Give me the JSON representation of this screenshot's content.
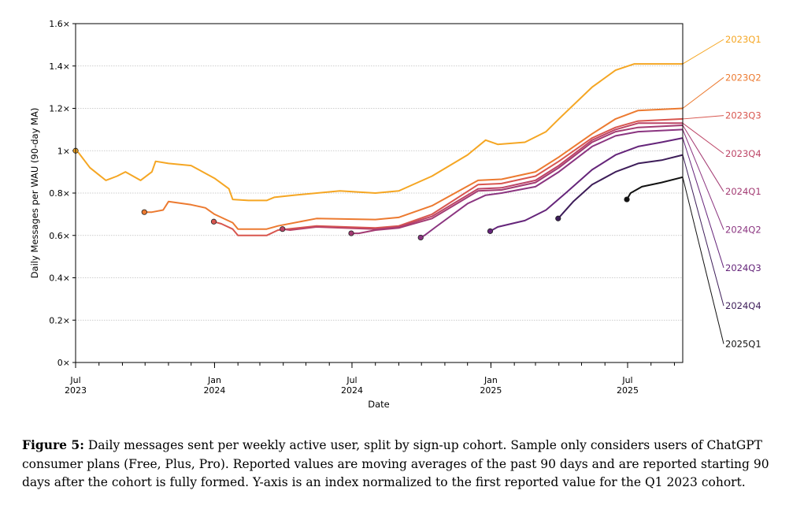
{
  "caption": {
    "label": "Figure 5:",
    "text": "Daily messages sent per weekly active user, split by sign-up cohort. Sample only considers users of ChatGPT consumer plans (Free, Plus, Pro). Reported values are moving averages of the past 90 days and are reported starting 90 days after the cohort is fully formed. Y-axis is an index normalized to the first reported value for the Q1 2023 cohort."
  },
  "chart_data": {
    "type": "line",
    "xlabel": "Date",
    "ylabel": "Daily Messages per WAU (90-day MA)",
    "ylim": [
      0,
      1.6
    ],
    "xlim": [
      "2023-07-01",
      "2025-09-12"
    ],
    "yticks": [
      {
        "value": 0,
        "label": "0×"
      },
      {
        "value": 0.2,
        "label": "0.2×"
      },
      {
        "value": 0.4,
        "label": "0.4×"
      },
      {
        "value": 0.6,
        "label": "0.6×"
      },
      {
        "value": 0.8,
        "label": "0.8×"
      },
      {
        "value": 1.0,
        "label": "1×"
      },
      {
        "value": 1.2,
        "label": "1.2×"
      },
      {
        "value": 1.4,
        "label": "1.4×"
      },
      {
        "value": 1.6,
        "label": "1.6×"
      }
    ],
    "xticks": [
      {
        "date": "2023-07-01",
        "label": [
          "Jul",
          "2023"
        ]
      },
      {
        "date": "2024-01-01",
        "label": [
          "Jan",
          "2024"
        ]
      },
      {
        "date": "2024-07-01",
        "label": [
          "Jul",
          "2024"
        ]
      },
      {
        "date": "2025-01-01",
        "label": [
          "Jan",
          "2025"
        ]
      },
      {
        "date": "2025-07-01",
        "label": [
          "Jul",
          "2025"
        ]
      }
    ],
    "grid": "horizontal dotted",
    "legend": "direct labels right of plot",
    "series": [
      {
        "name": "2023Q1",
        "color": "#f5a623",
        "points": [
          [
            "2023-07-01",
            1.0
          ],
          [
            "2023-07-05",
            0.99
          ],
          [
            "2023-07-20",
            0.92
          ],
          [
            "2023-08-10",
            0.86
          ],
          [
            "2023-08-25",
            0.88
          ],
          [
            "2023-09-05",
            0.9
          ],
          [
            "2023-09-25",
            0.86
          ],
          [
            "2023-10-10",
            0.9
          ],
          [
            "2023-10-15",
            0.95
          ],
          [
            "2023-11-01",
            0.94
          ],
          [
            "2023-12-01",
            0.93
          ],
          [
            "2024-01-01",
            0.87
          ],
          [
            "2024-01-20",
            0.82
          ],
          [
            "2024-01-25",
            0.77
          ],
          [
            "2024-02-15",
            0.765
          ],
          [
            "2024-03-10",
            0.765
          ],
          [
            "2024-03-20",
            0.78
          ],
          [
            "2024-04-15",
            0.79
          ],
          [
            "2024-06-15",
            0.81
          ],
          [
            "2024-08-01",
            0.8
          ],
          [
            "2024-09-01",
            0.81
          ],
          [
            "2024-10-15",
            0.88
          ],
          [
            "2024-12-01",
            0.98
          ],
          [
            "2024-12-25",
            1.05
          ],
          [
            "2025-01-10",
            1.03
          ],
          [
            "2025-02-15",
            1.04
          ],
          [
            "2025-03-15",
            1.09
          ],
          [
            "2025-04-01",
            1.15
          ],
          [
            "2025-05-15",
            1.3
          ],
          [
            "2025-06-15",
            1.38
          ],
          [
            "2025-07-10",
            1.41
          ],
          [
            "2025-09-12",
            1.41
          ]
        ]
      },
      {
        "name": "2023Q2",
        "color": "#ec7a30",
        "points": [
          [
            "2023-09-30",
            0.71
          ],
          [
            "2023-10-10",
            0.71
          ],
          [
            "2023-10-25",
            0.72
          ],
          [
            "2023-11-01",
            0.76
          ],
          [
            "2023-12-01",
            0.745
          ],
          [
            "2023-12-20",
            0.73
          ],
          [
            "2024-01-01",
            0.7
          ],
          [
            "2024-01-25",
            0.66
          ],
          [
            "2024-02-01",
            0.63
          ],
          [
            "2024-03-10",
            0.63
          ],
          [
            "2024-03-25",
            0.645
          ],
          [
            "2024-05-15",
            0.68
          ],
          [
            "2024-08-01",
            0.675
          ],
          [
            "2024-09-01",
            0.685
          ],
          [
            "2024-10-15",
            0.74
          ],
          [
            "2024-12-15",
            0.86
          ],
          [
            "2025-01-15",
            0.865
          ],
          [
            "2025-03-01",
            0.9
          ],
          [
            "2025-04-01",
            0.97
          ],
          [
            "2025-05-15",
            1.08
          ],
          [
            "2025-06-15",
            1.15
          ],
          [
            "2025-07-15",
            1.19
          ],
          [
            "2025-09-12",
            1.2
          ]
        ]
      },
      {
        "name": "2023Q3",
        "color": "#d8564f",
        "points": [
          [
            "2023-12-31",
            0.665
          ],
          [
            "2024-01-10",
            0.655
          ],
          [
            "2024-01-25",
            0.63
          ],
          [
            "2024-02-01",
            0.6
          ],
          [
            "2024-03-10",
            0.6
          ],
          [
            "2024-03-25",
            0.625
          ],
          [
            "2024-05-15",
            0.645
          ],
          [
            "2024-08-01",
            0.635
          ],
          [
            "2024-09-01",
            0.645
          ],
          [
            "2024-10-15",
            0.7
          ],
          [
            "2024-12-15",
            0.84
          ],
          [
            "2025-01-15",
            0.845
          ],
          [
            "2025-03-01",
            0.88
          ],
          [
            "2025-04-01",
            0.95
          ],
          [
            "2025-05-15",
            1.06
          ],
          [
            "2025-06-15",
            1.11
          ],
          [
            "2025-07-15",
            1.14
          ],
          [
            "2025-09-12",
            1.15
          ]
        ]
      },
      {
        "name": "2023Q4",
        "color": "#bc4466",
        "points": [
          [
            "2024-03-31",
            0.63
          ],
          [
            "2024-04-10",
            0.625
          ],
          [
            "2024-05-15",
            0.64
          ],
          [
            "2024-08-01",
            0.63
          ],
          [
            "2024-09-01",
            0.64
          ],
          [
            "2024-10-15",
            0.69
          ],
          [
            "2024-12-15",
            0.82
          ],
          [
            "2025-01-15",
            0.825
          ],
          [
            "2025-03-01",
            0.86
          ],
          [
            "2025-04-01",
            0.93
          ],
          [
            "2025-05-15",
            1.05
          ],
          [
            "2025-06-15",
            1.1
          ],
          [
            "2025-07-15",
            1.13
          ],
          [
            "2025-09-12",
            1.13
          ]
        ]
      },
      {
        "name": "2024Q1",
        "color": "#a33b73",
        "points": [
          [
            "2024-06-30",
            0.61
          ],
          [
            "2024-07-10",
            0.61
          ],
          [
            "2024-08-01",
            0.625
          ],
          [
            "2024-09-01",
            0.635
          ],
          [
            "2024-10-15",
            0.68
          ],
          [
            "2024-12-15",
            0.81
          ],
          [
            "2025-01-15",
            0.815
          ],
          [
            "2025-03-01",
            0.85
          ],
          [
            "2025-04-01",
            0.92
          ],
          [
            "2025-05-15",
            1.04
          ],
          [
            "2025-06-15",
            1.09
          ],
          [
            "2025-07-15",
            1.11
          ],
          [
            "2025-09-12",
            1.12
          ]
        ]
      },
      {
        "name": "2024Q2",
        "color": "#8b3580",
        "points": [
          [
            "2024-09-30",
            0.59
          ],
          [
            "2024-10-05",
            0.6
          ],
          [
            "2024-10-20",
            0.64
          ],
          [
            "2024-12-01",
            0.75
          ],
          [
            "2024-12-25",
            0.79
          ],
          [
            "2025-01-15",
            0.8
          ],
          [
            "2025-03-01",
            0.83
          ],
          [
            "2025-04-01",
            0.9
          ],
          [
            "2025-05-15",
            1.02
          ],
          [
            "2025-06-15",
            1.07
          ],
          [
            "2025-07-15",
            1.09
          ],
          [
            "2025-09-12",
            1.1
          ]
        ]
      },
      {
        "name": "2024Q3",
        "color": "#65257a",
        "points": [
          [
            "2024-12-31",
            0.62
          ],
          [
            "2025-01-10",
            0.64
          ],
          [
            "2025-02-15",
            0.67
          ],
          [
            "2025-03-15",
            0.72
          ],
          [
            "2025-04-10",
            0.8
          ],
          [
            "2025-05-15",
            0.91
          ],
          [
            "2025-06-15",
            0.98
          ],
          [
            "2025-07-15",
            1.02
          ],
          [
            "2025-08-15",
            1.04
          ],
          [
            "2025-09-12",
            1.06
          ]
        ]
      },
      {
        "name": "2024Q4",
        "color": "#3d1d59",
        "points": [
          [
            "2025-03-31",
            0.68
          ],
          [
            "2025-04-05",
            0.7
          ],
          [
            "2025-04-20",
            0.76
          ],
          [
            "2025-05-15",
            0.84
          ],
          [
            "2025-06-15",
            0.9
          ],
          [
            "2025-07-15",
            0.94
          ],
          [
            "2025-08-15",
            0.955
          ],
          [
            "2025-09-12",
            0.98
          ]
        ]
      },
      {
        "name": "2025Q1",
        "color": "#111111",
        "points": [
          [
            "2025-06-30",
            0.77
          ],
          [
            "2025-07-05",
            0.8
          ],
          [
            "2025-07-20",
            0.83
          ],
          [
            "2025-08-15",
            0.85
          ],
          [
            "2025-09-12",
            0.875
          ]
        ]
      }
    ]
  }
}
